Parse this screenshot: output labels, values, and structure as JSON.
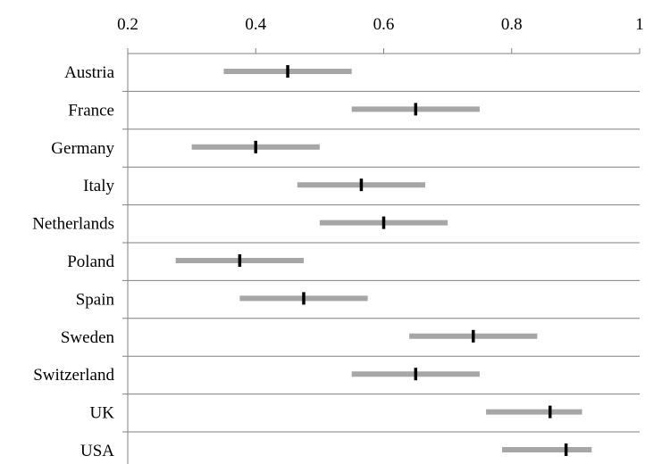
{
  "chart_data": {
    "type": "interval",
    "title": "",
    "xlabel": "",
    "ylabel": "",
    "xlim": [
      0.2,
      1.0
    ],
    "x_ticks": [
      0.2,
      0.4,
      0.6,
      0.8,
      1.0
    ],
    "x_tick_labels": [
      "0.2",
      "0.4",
      "0.6",
      "0.8",
      "1"
    ],
    "x_axis_position": "top",
    "grid": "horizontal row separators",
    "categories": [
      "Austria",
      "France",
      "Germany",
      "Italy",
      "Netherlands",
      "Poland",
      "Spain",
      "Sweden",
      "Switzerland",
      "UK",
      "USA"
    ],
    "intervals": [
      {
        "low": 0.35,
        "point": 0.45,
        "high": 0.55
      },
      {
        "low": 0.55,
        "point": 0.65,
        "high": 0.75
      },
      {
        "low": 0.3,
        "point": 0.4,
        "high": 0.5
      },
      {
        "low": 0.465,
        "point": 0.565,
        "high": 0.665
      },
      {
        "low": 0.5,
        "point": 0.6,
        "high": 0.7
      },
      {
        "low": 0.275,
        "point": 0.375,
        "high": 0.475
      },
      {
        "low": 0.375,
        "point": 0.475,
        "high": 0.575
      },
      {
        "low": 0.64,
        "point": 0.74,
        "high": 0.84
      },
      {
        "low": 0.55,
        "point": 0.65,
        "high": 0.75
      },
      {
        "low": 0.76,
        "point": 0.86,
        "high": 0.91
      },
      {
        "low": 0.785,
        "point": 0.885,
        "high": 0.925
      }
    ],
    "colors": {
      "range": "#a6a6a6",
      "point": "#000000",
      "axis": "#808080"
    }
  }
}
